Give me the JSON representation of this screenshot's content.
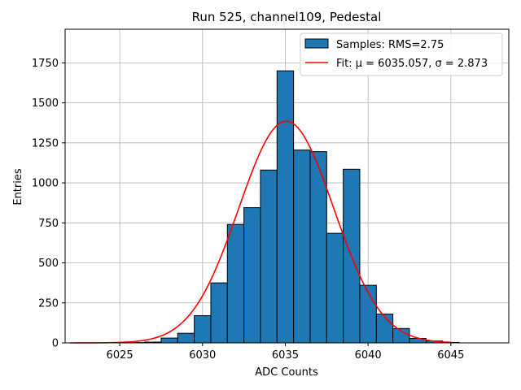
{
  "chart_data": {
    "type": "bar",
    "title": "Run 525, channel109, Pedestal",
    "xlabel": "ADC Counts",
    "ylabel": "Entries",
    "xlim": [
      6021.7,
      6048.5
    ],
    "ylim": [
      0,
      1960
    ],
    "xticks": [
      6025,
      6030,
      6035,
      6040,
      6045
    ],
    "yticks": [
      0,
      250,
      500,
      750,
      1000,
      1250,
      1500,
      1750
    ],
    "grid": true,
    "legend_position": "top-right",
    "bin_width": 1,
    "series": [
      {
        "name": "Samples: RMS=2.75",
        "kind": "histogram",
        "color": "#1f77b4",
        "edgecolor": "#000000",
        "bins": [
          {
            "x": 6026,
            "count": 2
          },
          {
            "x": 6027,
            "count": 5
          },
          {
            "x": 6028,
            "count": 30
          },
          {
            "x": 6029,
            "count": 60
          },
          {
            "x": 6030,
            "count": 170
          },
          {
            "x": 6031,
            "count": 375
          },
          {
            "x": 6032,
            "count": 740
          },
          {
            "x": 6033,
            "count": 845
          },
          {
            "x": 6034,
            "count": 1080
          },
          {
            "x": 6035,
            "count": 1700
          },
          {
            "x": 6036,
            "count": 1205
          },
          {
            "x": 6037,
            "count": 1195
          },
          {
            "x": 6038,
            "count": 685
          },
          {
            "x": 6039,
            "count": 1085
          },
          {
            "x": 6040,
            "count": 360
          },
          {
            "x": 6041,
            "count": 180
          },
          {
            "x": 6042,
            "count": 90
          },
          {
            "x": 6043,
            "count": 28
          },
          {
            "x": 6044,
            "count": 12
          },
          {
            "x": 6045,
            "count": 3
          }
        ]
      },
      {
        "name": "Fit: μ = 6035.057, σ = 2.873",
        "kind": "gaussian",
        "color": "#ff0000",
        "mu": 6035.057,
        "sigma": 2.873,
        "amplitude": 1385,
        "x_range": [
          6022,
          6045
        ]
      }
    ]
  }
}
